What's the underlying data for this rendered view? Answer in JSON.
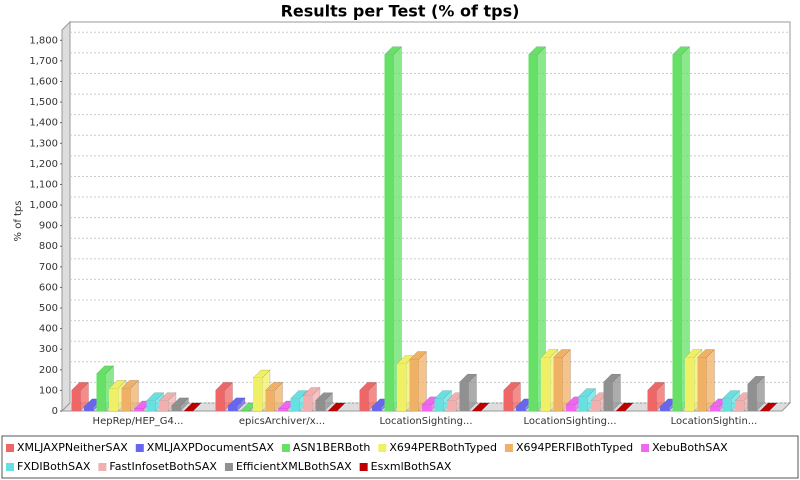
{
  "chart_data": {
    "type": "bar3d",
    "title": "Results per Test (% of tps)",
    "y_label": "% of tps",
    "categories": [
      "HepRep/HEP_G4...",
      "epicsArchiver/x...",
      "LocationSighting...",
      "LocationSighting...",
      "LocationSightin..."
    ],
    "series": [
      {
        "name": "XMLJAXPNeitherSAX",
        "color": "#f06666",
        "values": [
          100,
          100,
          100,
          100,
          100
        ]
      },
      {
        "name": "XMLJAXPDocumentSAX",
        "color": "#6666f0",
        "values": [
          20,
          25,
          20,
          20,
          20
        ]
      },
      {
        "name": "ASN1BERBoth",
        "color": "#66e066",
        "values": [
          180,
          0,
          1730,
          1730,
          1730
        ]
      },
      {
        "name": "X694PERBothTyped",
        "color": "#f0f066",
        "values": [
          110,
          160,
          230,
          260,
          260
        ]
      },
      {
        "name": "X694PERFIBothTyped",
        "color": "#f0b066",
        "values": [
          110,
          100,
          250,
          260,
          260
        ]
      },
      {
        "name": "XebuBothSAX",
        "color": "#f066f0",
        "values": [
          10,
          10,
          30,
          30,
          20
        ]
      },
      {
        "name": "FXDIBothSAX",
        "color": "#66e0e0",
        "values": [
          50,
          60,
          60,
          70,
          60
        ]
      },
      {
        "name": "FastInfosetBothSAX",
        "color": "#f0b0b0",
        "values": [
          50,
          75,
          50,
          50,
          50
        ]
      },
      {
        "name": "EfficientXMLBothSAX",
        "color": "#909090",
        "values": [
          25,
          50,
          140,
          140,
          130
        ]
      },
      {
        "name": "EsxmlBothSAX",
        "color": "#c00000",
        "values": [
          0,
          0,
          0,
          0,
          0
        ]
      }
    ],
    "ylim": [
      0,
      1850
    ],
    "yticks": [
      0,
      100,
      200,
      300,
      400,
      500,
      600,
      700,
      800,
      900,
      {
        "value": 1000,
        "label": "1,000"
      },
      {
        "value": 1100,
        "label": "1,100"
      },
      {
        "value": 1200,
        "label": "1,200"
      },
      {
        "value": 1300,
        "label": "1,300"
      },
      {
        "value": 1400,
        "label": "1,400"
      },
      {
        "value": 1500,
        "label": "1,500"
      },
      {
        "value": 1600,
        "label": "1,600"
      },
      {
        "value": 1700,
        "label": "1,700"
      },
      {
        "value": 1800,
        "label": "1,800"
      }
    ],
    "grid": true,
    "legend": "bottom"
  }
}
